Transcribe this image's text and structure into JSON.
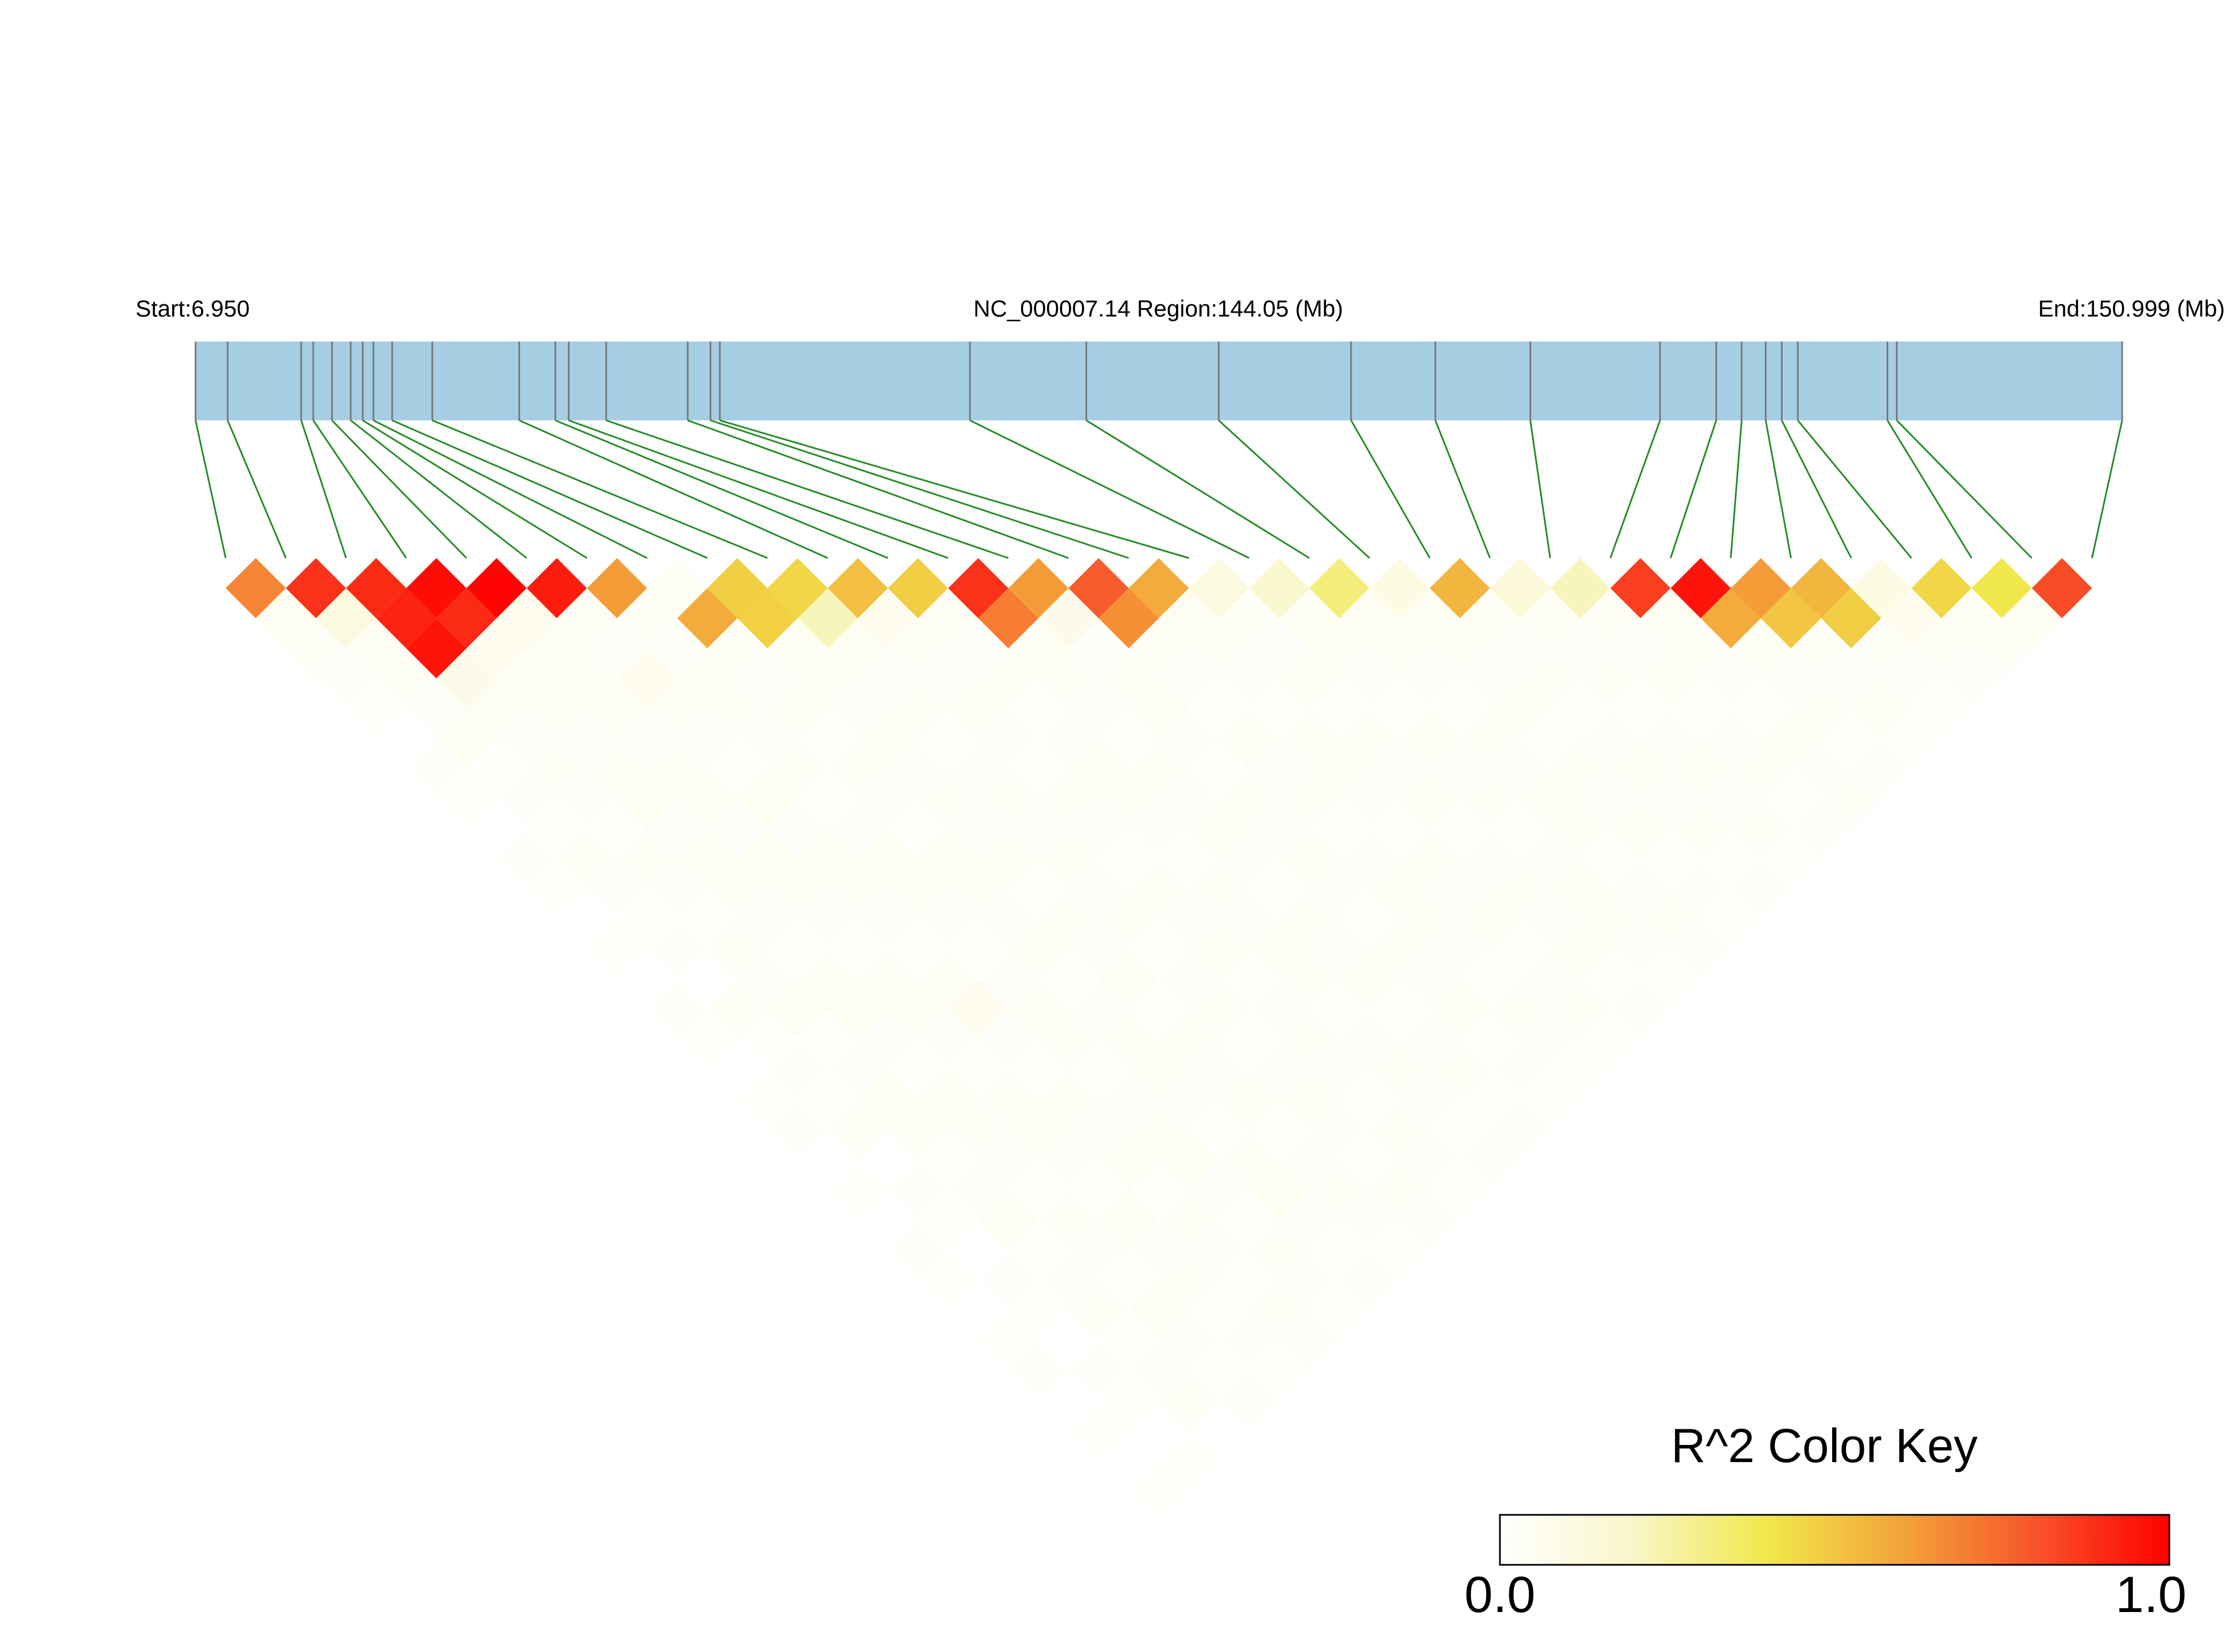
{
  "header": {
    "start_label": "Start:6.950",
    "region_label": "NC_000007.14 Region:144.05 (Mb)",
    "end_label": "End:150.999 (Mb)"
  },
  "color_key": {
    "title": "R^2 Color Key",
    "min_label": "0.0",
    "max_label": "1.0",
    "gradient": [
      "#ffffff",
      "#f8f6c8",
      "#f0e84a",
      "#f3a43a",
      "#f7542a",
      "#ff0000"
    ]
  },
  "colors": {
    "chromosome_bar": "#a6cee3",
    "chromosome_tick": "#777777",
    "connector_line": "#228b22"
  },
  "chart_data": {
    "type": "heatmap",
    "title": "",
    "region_start_mb": 6.95,
    "region_end_mb": 150.999,
    "snp_positions_mb": [
      6.95,
      9.35,
      14.85,
      15.75,
      17.15,
      18.55,
      19.45,
      20.25,
      21.65,
      24.65,
      31.15,
      33.85,
      34.85,
      37.65,
      43.75,
      45.45,
      46.15,
      64.85,
      73.55,
      83.45,
      93.35,
      99.65,
      106.75,
      116.45,
      120.65,
      122.55,
      124.35,
      125.55,
      126.75,
      133.45,
      134.15,
      150.999
    ],
    "r2_matrix": [
      [
        1.0,
        0.68,
        0.05,
        0.03,
        0.02,
        0.01,
        0.0,
        0.02,
        0.01,
        0.0,
        0.02,
        0.01,
        0.0,
        0.01,
        0.0,
        0.02,
        0.01,
        0.0,
        0.01,
        0.02,
        0.0,
        0.01,
        0.0,
        0.02,
        0.01,
        0.0,
        0.01,
        0.02,
        0.0,
        0.01,
        0.0,
        0.01
      ],
      [
        0.68,
        1.0,
        0.88,
        0.12,
        0.04,
        0.03,
        0.02,
        0.05,
        0.01,
        0.02,
        0.01,
        0.03,
        0.02,
        0.01,
        0.02,
        0.0,
        0.03,
        0.01,
        0.02,
        0.01,
        0.03,
        0.0,
        0.02,
        0.01,
        0.0,
        0.02,
        0.01,
        0.0,
        0.02,
        0.01,
        0.0,
        0.01
      ],
      [
        0.05,
        0.88,
        1.0,
        0.9,
        0.92,
        0.95,
        0.08,
        0.04,
        0.02,
        0.03,
        0.02,
        0.01,
        0.03,
        0.02,
        0.01,
        0.03,
        0.02,
        0.04,
        0.01,
        0.02,
        0.05,
        0.03,
        0.01,
        0.02,
        0.04,
        0.01,
        0.02,
        0.03,
        0.01,
        0.02,
        0.03,
        0.0
      ],
      [
        0.03,
        0.12,
        0.9,
        1.0,
        0.97,
        0.9,
        0.06,
        0.03,
        0.04,
        0.02,
        0.03,
        0.05,
        0.02,
        0.04,
        0.03,
        0.02,
        0.01,
        0.03,
        0.05,
        0.02,
        0.01,
        0.04,
        0.03,
        0.02,
        0.01,
        0.03,
        0.02,
        0.01,
        0.04,
        0.02,
        0.01,
        0.02
      ],
      [
        0.02,
        0.04,
        0.92,
        0.97,
        1.0,
        0.99,
        0.07,
        0.05,
        0.03,
        0.04,
        0.02,
        0.03,
        0.04,
        0.02,
        0.05,
        0.03,
        0.02,
        0.01,
        0.03,
        0.04,
        0.02,
        0.01,
        0.03,
        0.05,
        0.02,
        0.01,
        0.04,
        0.02,
        0.03,
        0.01,
        0.02,
        0.01
      ],
      [
        0.01,
        0.03,
        0.95,
        0.9,
        0.99,
        1.0,
        0.93,
        0.04,
        0.02,
        0.06,
        0.03,
        0.02,
        0.01,
        0.05,
        0.02,
        0.04,
        0.03,
        0.02,
        0.01,
        0.03,
        0.06,
        0.02,
        0.01,
        0.03,
        0.02,
        0.04,
        0.01,
        0.03,
        0.02,
        0.01,
        0.03,
        0.02
      ],
      [
        0.0,
        0.02,
        0.08,
        0.06,
        0.07,
        0.93,
        1.0,
        0.62,
        0.03,
        0.02,
        0.04,
        0.03,
        0.02,
        0.03,
        0.01,
        0.02,
        0.05,
        0.03,
        0.02,
        0.01,
        0.02,
        0.04,
        0.03,
        0.01,
        0.02,
        0.03,
        0.05,
        0.02,
        0.01,
        0.03,
        0.02,
        0.01
      ],
      [
        0.02,
        0.05,
        0.04,
        0.03,
        0.05,
        0.04,
        0.62,
        1.0,
        0.04,
        0.58,
        0.03,
        0.02,
        0.04,
        0.01,
        0.03,
        0.02,
        0.01,
        0.04,
        0.03,
        0.02,
        0.04,
        0.01,
        0.02,
        0.03,
        0.04,
        0.02,
        0.01,
        0.03,
        0.05,
        0.02,
        0.01,
        0.02
      ],
      [
        0.01,
        0.01,
        0.02,
        0.04,
        0.03,
        0.02,
        0.03,
        0.04,
        1.0,
        0.48,
        0.47,
        0.05,
        0.03,
        0.02,
        0.04,
        0.02,
        0.03,
        0.02,
        0.04,
        0.01,
        0.03,
        0.02,
        0.04,
        0.01,
        0.03,
        0.02,
        0.04,
        0.01,
        0.02,
        0.03,
        0.02,
        0.01
      ],
      [
        0.0,
        0.02,
        0.03,
        0.02,
        0.04,
        0.06,
        0.02,
        0.58,
        0.48,
        1.0,
        0.45,
        0.22,
        0.05,
        0.02,
        0.03,
        0.01,
        0.02,
        0.03,
        0.02,
        0.04,
        0.02,
        0.03,
        0.01,
        0.02,
        0.03,
        0.01,
        0.02,
        0.04,
        0.02,
        0.01,
        0.03,
        0.02
      ],
      [
        0.02,
        0.01,
        0.02,
        0.03,
        0.02,
        0.03,
        0.04,
        0.03,
        0.47,
        0.45,
        1.0,
        0.52,
        0.06,
        0.03,
        0.02,
        0.04,
        0.02,
        0.01,
        0.03,
        0.02,
        0.01,
        0.03,
        0.02,
        0.04,
        0.01,
        0.02,
        0.03,
        0.02,
        0.01,
        0.03,
        0.02,
        0.01
      ],
      [
        0.01,
        0.03,
        0.01,
        0.05,
        0.03,
        0.02,
        0.03,
        0.02,
        0.05,
        0.22,
        0.52,
        1.0,
        0.48,
        0.04,
        0.02,
        0.03,
        0.01,
        0.02,
        0.04,
        0.03,
        0.02,
        0.01,
        0.03,
        0.02,
        0.04,
        0.03,
        0.01,
        0.02,
        0.03,
        0.02,
        0.01,
        0.02
      ],
      [
        0.0,
        0.02,
        0.03,
        0.02,
        0.04,
        0.01,
        0.02,
        0.04,
        0.03,
        0.05,
        0.06,
        0.48,
        1.0,
        0.88,
        0.7,
        0.04,
        0.03,
        0.02,
        0.01,
        0.03,
        0.02,
        0.04,
        0.02,
        0.01,
        0.03,
        0.02,
        0.04,
        0.01,
        0.02,
        0.03,
        0.01,
        0.02
      ],
      [
        0.01,
        0.01,
        0.02,
        0.04,
        0.02,
        0.05,
        0.03,
        0.01,
        0.02,
        0.02,
        0.03,
        0.04,
        0.88,
        1.0,
        0.62,
        0.08,
        0.02,
        0.03,
        0.04,
        0.02,
        0.01,
        0.03,
        0.02,
        0.04,
        0.02,
        0.01,
        0.03,
        0.02,
        0.04,
        0.01,
        0.02,
        0.01
      ],
      [
        0.0,
        0.02,
        0.01,
        0.03,
        0.05,
        0.02,
        0.01,
        0.03,
        0.04,
        0.03,
        0.02,
        0.02,
        0.7,
        0.62,
        1.0,
        0.78,
        0.65,
        0.03,
        0.02,
        0.01,
        0.04,
        0.02,
        0.03,
        0.01,
        0.02,
        0.04,
        0.03,
        0.02,
        0.01,
        0.03,
        0.02,
        0.01
      ],
      [
        0.02,
        0.0,
        0.03,
        0.02,
        0.03,
        0.04,
        0.02,
        0.02,
        0.02,
        0.01,
        0.04,
        0.03,
        0.04,
        0.08,
        0.78,
        1.0,
        0.58,
        0.04,
        0.03,
        0.02,
        0.01,
        0.03,
        0.04,
        0.02,
        0.01,
        0.03,
        0.02,
        0.04,
        0.01,
        0.02,
        0.03,
        0.01
      ],
      [
        0.01,
        0.03,
        0.02,
        0.01,
        0.02,
        0.03,
        0.05,
        0.01,
        0.03,
        0.02,
        0.02,
        0.01,
        0.03,
        0.02,
        0.65,
        0.58,
        1.0,
        0.12,
        0.03,
        0.02,
        0.04,
        0.01,
        0.03,
        0.02,
        0.04,
        0.01,
        0.02,
        0.03,
        0.02,
        0.04,
        0.01,
        0.02
      ],
      [
        0.0,
        0.01,
        0.04,
        0.03,
        0.01,
        0.02,
        0.03,
        0.04,
        0.02,
        0.03,
        0.01,
        0.02,
        0.02,
        0.03,
        0.03,
        0.04,
        0.12,
        1.0,
        0.18,
        0.05,
        0.03,
        0.02,
        0.01,
        0.04,
        0.02,
        0.03,
        0.01,
        0.02,
        0.04,
        0.03,
        0.02,
        0.01
      ],
      [
        0.01,
        0.02,
        0.01,
        0.05,
        0.03,
        0.01,
        0.02,
        0.03,
        0.04,
        0.02,
        0.03,
        0.04,
        0.01,
        0.04,
        0.02,
        0.03,
        0.03,
        0.18,
        1.0,
        0.32,
        0.04,
        0.03,
        0.02,
        0.01,
        0.03,
        0.02,
        0.04,
        0.03,
        0.01,
        0.02,
        0.03,
        0.02
      ],
      [
        0.02,
        0.01,
        0.02,
        0.02,
        0.04,
        0.03,
        0.01,
        0.02,
        0.01,
        0.04,
        0.02,
        0.03,
        0.03,
        0.02,
        0.01,
        0.02,
        0.02,
        0.05,
        0.32,
        1.0,
        0.1,
        0.05,
        0.03,
        0.02,
        0.04,
        0.01,
        0.03,
        0.02,
        0.04,
        0.01,
        0.02,
        0.01
      ],
      [
        0.0,
        0.03,
        0.05,
        0.01,
        0.02,
        0.06,
        0.02,
        0.04,
        0.03,
        0.02,
        0.01,
        0.02,
        0.02,
        0.01,
        0.04,
        0.01,
        0.04,
        0.03,
        0.04,
        0.1,
        1.0,
        0.55,
        0.04,
        0.02,
        0.03,
        0.01,
        0.02,
        0.04,
        0.02,
        0.03,
        0.01,
        0.02
      ],
      [
        0.01,
        0.0,
        0.03,
        0.04,
        0.01,
        0.02,
        0.04,
        0.01,
        0.02,
        0.03,
        0.03,
        0.01,
        0.04,
        0.03,
        0.02,
        0.03,
        0.01,
        0.02,
        0.03,
        0.05,
        0.55,
        1.0,
        0.15,
        0.04,
        0.02,
        0.03,
        0.01,
        0.02,
        0.04,
        0.02,
        0.03,
        0.01
      ],
      [
        0.0,
        0.02,
        0.01,
        0.03,
        0.03,
        0.01,
        0.03,
        0.02,
        0.04,
        0.01,
        0.02,
        0.03,
        0.02,
        0.02,
        0.03,
        0.04,
        0.03,
        0.01,
        0.02,
        0.03,
        0.04,
        0.15,
        1.0,
        0.22,
        0.03,
        0.02,
        0.04,
        0.01,
        0.02,
        0.03,
        0.01,
        0.02
      ],
      [
        0.02,
        0.01,
        0.02,
        0.02,
        0.05,
        0.03,
        0.01,
        0.03,
        0.01,
        0.02,
        0.04,
        0.02,
        0.01,
        0.04,
        0.01,
        0.02,
        0.02,
        0.04,
        0.01,
        0.02,
        0.02,
        0.04,
        0.22,
        1.0,
        0.85,
        0.05,
        0.03,
        0.02,
        0.01,
        0.04,
        0.02,
        0.03
      ],
      [
        0.01,
        0.0,
        0.04,
        0.01,
        0.02,
        0.02,
        0.02,
        0.04,
        0.03,
        0.03,
        0.01,
        0.04,
        0.03,
        0.02,
        0.02,
        0.01,
        0.04,
        0.02,
        0.03,
        0.04,
        0.03,
        0.02,
        0.03,
        0.85,
        1.0,
        0.95,
        0.58,
        0.04,
        0.02,
        0.03,
        0.01,
        0.02
      ],
      [
        0.0,
        0.02,
        0.01,
        0.03,
        0.01,
        0.04,
        0.03,
        0.02,
        0.02,
        0.01,
        0.02,
        0.03,
        0.02,
        0.01,
        0.04,
        0.03,
        0.01,
        0.03,
        0.02,
        0.01,
        0.01,
        0.03,
        0.02,
        0.05,
        0.95,
        1.0,
        0.62,
        0.5,
        0.03,
        0.02,
        0.04,
        0.01
      ],
      [
        0.01,
        0.01,
        0.02,
        0.02,
        0.04,
        0.01,
        0.05,
        0.01,
        0.04,
        0.02,
        0.03,
        0.01,
        0.04,
        0.03,
        0.03,
        0.02,
        0.02,
        0.01,
        0.04,
        0.03,
        0.02,
        0.01,
        0.04,
        0.03,
        0.58,
        0.62,
        1.0,
        0.55,
        0.48,
        0.03,
        0.02,
        0.01
      ],
      [
        0.02,
        0.0,
        0.03,
        0.01,
        0.02,
        0.03,
        0.02,
        0.03,
        0.01,
        0.04,
        0.02,
        0.02,
        0.01,
        0.02,
        0.02,
        0.04,
        0.03,
        0.02,
        0.03,
        0.02,
        0.04,
        0.02,
        0.01,
        0.02,
        0.04,
        0.5,
        0.55,
        1.0,
        0.1,
        0.06,
        0.03,
        0.02
      ],
      [
        0.0,
        0.02,
        0.01,
        0.04,
        0.03,
        0.02,
        0.01,
        0.05,
        0.02,
        0.02,
        0.01,
        0.03,
        0.02,
        0.04,
        0.01,
        0.01,
        0.02,
        0.04,
        0.01,
        0.04,
        0.02,
        0.04,
        0.02,
        0.01,
        0.02,
        0.03,
        0.48,
        0.1,
        1.0,
        0.45,
        0.04,
        0.03
      ],
      [
        0.01,
        0.01,
        0.02,
        0.02,
        0.01,
        0.01,
        0.03,
        0.02,
        0.03,
        0.01,
        0.03,
        0.02,
        0.03,
        0.01,
        0.03,
        0.02,
        0.04,
        0.03,
        0.02,
        0.01,
        0.03,
        0.02,
        0.03,
        0.04,
        0.03,
        0.02,
        0.03,
        0.06,
        0.45,
        1.0,
        0.4,
        0.05
      ],
      [
        0.0,
        0.0,
        0.03,
        0.01,
        0.02,
        0.03,
        0.02,
        0.01,
        0.02,
        0.03,
        0.02,
        0.01,
        0.01,
        0.02,
        0.02,
        0.03,
        0.01,
        0.02,
        0.03,
        0.02,
        0.01,
        0.03,
        0.01,
        0.02,
        0.01,
        0.04,
        0.02,
        0.03,
        0.04,
        0.4,
        1.0,
        0.82
      ],
      [
        0.01,
        0.01,
        0.0,
        0.02,
        0.01,
        0.02,
        0.01,
        0.02,
        0.01,
        0.02,
        0.01,
        0.02,
        0.02,
        0.01,
        0.01,
        0.01,
        0.02,
        0.01,
        0.02,
        0.01,
        0.02,
        0.01,
        0.02,
        0.03,
        0.02,
        0.01,
        0.01,
        0.02,
        0.03,
        0.05,
        0.82,
        1.0
      ]
    ],
    "color_scale": {
      "min": 0.0,
      "max": 1.0
    }
  }
}
